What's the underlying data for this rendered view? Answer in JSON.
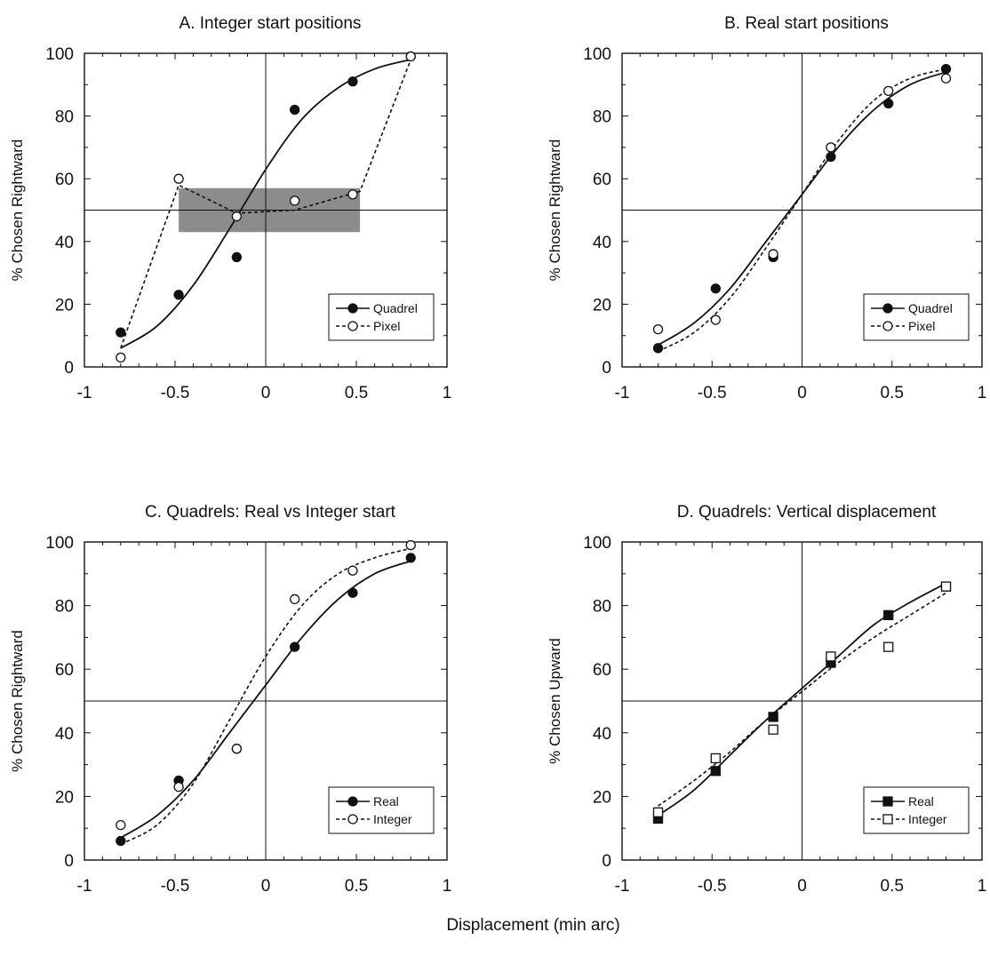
{
  "figure": {
    "xlabel": "Displacement (min arc)"
  },
  "chart_data": [
    {
      "type": "line",
      "title": "A.  Integer start positions",
      "xlabel": "",
      "ylabel": "% Chosen Rightward",
      "xlim": [
        -1,
        1
      ],
      "ylim": [
        0,
        100
      ],
      "xticks": [
        "-1",
        "-0.5",
        "0",
        "0.5",
        "1"
      ],
      "yticks": [
        "0",
        "20",
        "40",
        "60",
        "80",
        "100"
      ],
      "legend_position": "bottom-right",
      "shaded_band": {
        "x": [
          -0.48,
          0.52
        ],
        "y": [
          43,
          57
        ]
      },
      "series": [
        {
          "name": "Quadrel",
          "marker": "filled-circle",
          "line": "solid",
          "x": [
            -0.8,
            -0.48,
            -0.16,
            0.16,
            0.48,
            0.8
          ],
          "y": [
            11,
            23,
            35,
            82,
            91,
            99
          ],
          "fit": {
            "x": [
              -0.8,
              -0.6,
              -0.4,
              -0.2,
              0,
              0.2,
              0.4,
              0.6,
              0.8
            ],
            "y": [
              6,
              13,
              26,
              44,
              63,
              79,
              89,
              95,
              98
            ]
          }
        },
        {
          "name": "Pixel",
          "marker": "open-circle",
          "line": "dashed",
          "x": [
            -0.8,
            -0.48,
            -0.16,
            0.16,
            0.48,
            0.8
          ],
          "y": [
            3,
            60,
            48,
            53,
            55,
            99
          ],
          "fit": {
            "x": [
              -0.8,
              -0.48,
              -0.16,
              0.16,
              0.52,
              0.8
            ],
            "y": [
              6,
              58,
              49,
              50,
              56,
              98
            ]
          }
        }
      ]
    },
    {
      "type": "line",
      "title": "B.  Real start positions",
      "xlabel": "",
      "ylabel": "% Chosen Rightward",
      "xlim": [
        -1,
        1
      ],
      "ylim": [
        0,
        100
      ],
      "xticks": [
        "-1",
        "-0.5",
        "0",
        "0.5",
        "1"
      ],
      "yticks": [
        "0",
        "20",
        "40",
        "60",
        "80",
        "100"
      ],
      "legend_position": "bottom-right",
      "series": [
        {
          "name": "Quadrel",
          "marker": "filled-circle",
          "line": "solid",
          "x": [
            -0.8,
            -0.48,
            -0.16,
            0.16,
            0.48,
            0.8
          ],
          "y": [
            6,
            25,
            35,
            67,
            84,
            95
          ],
          "fit": {
            "x": [
              -0.8,
              -0.6,
              -0.4,
              -0.2,
              0,
              0.2,
              0.4,
              0.6,
              0.8
            ],
            "y": [
              7,
              14,
              25,
              40,
              55,
              70,
              82,
              90,
              94
            ]
          }
        },
        {
          "name": "Pixel",
          "marker": "open-circle",
          "line": "dashed",
          "x": [
            -0.8,
            -0.48,
            -0.16,
            0.16,
            0.48,
            0.8
          ],
          "y": [
            12,
            15,
            36,
            70,
            88,
            92
          ],
          "fit": {
            "x": [
              -0.8,
              -0.6,
              -0.4,
              -0.2,
              0,
              0.2,
              0.4,
              0.6,
              0.8
            ],
            "y": [
              5,
              11,
              22,
              38,
              55,
              72,
              85,
              92,
              95
            ]
          }
        }
      ]
    },
    {
      "type": "line",
      "title": "C.  Quadrels: Real vs Integer start",
      "xlabel": "",
      "ylabel": "% Chosen Rightward",
      "xlim": [
        -1,
        1
      ],
      "ylim": [
        0,
        100
      ],
      "xticks": [
        "-1",
        "-0.5",
        "0",
        "0.5",
        "1"
      ],
      "yticks": [
        "0",
        "20",
        "40",
        "60",
        "80",
        "100"
      ],
      "legend_position": "bottom-right",
      "series": [
        {
          "name": "Real",
          "marker": "filled-circle",
          "line": "solid",
          "x": [
            -0.8,
            -0.48,
            -0.16,
            0.16,
            0.48,
            0.8
          ],
          "y": [
            6,
            25,
            35,
            67,
            84,
            95
          ],
          "fit": {
            "x": [
              -0.8,
              -0.6,
              -0.4,
              -0.2,
              0,
              0.2,
              0.4,
              0.6,
              0.8
            ],
            "y": [
              7,
              14,
              25,
              40,
              55,
              70,
              82,
              90,
              94
            ]
          }
        },
        {
          "name": "Integer",
          "marker": "open-circle",
          "line": "dashed",
          "x": [
            -0.8,
            -0.48,
            -0.16,
            0.16,
            0.48,
            0.8
          ],
          "y": [
            11,
            23,
            35,
            82,
            91,
            99
          ],
          "fit": {
            "x": [
              -0.8,
              -0.6,
              -0.4,
              -0.2,
              0,
              0.2,
              0.4,
              0.6,
              0.8
            ],
            "y": [
              5,
              11,
              24,
              44,
              64,
              80,
              90,
              95,
              98
            ]
          }
        }
      ]
    },
    {
      "type": "line",
      "title": "D.  Quadrels: Vertical displacement",
      "xlabel": "",
      "ylabel": "% Chosen Upward",
      "xlim": [
        -1,
        1
      ],
      "ylim": [
        0,
        100
      ],
      "xticks": [
        "-1",
        "-0.5",
        "0",
        "0.5",
        "1"
      ],
      "yticks": [
        "0",
        "20",
        "40",
        "60",
        "80",
        "100"
      ],
      "legend_position": "bottom-right",
      "series": [
        {
          "name": "Real",
          "marker": "filled-square",
          "line": "solid",
          "x": [
            -0.8,
            -0.48,
            -0.16,
            0.16,
            0.48,
            0.8
          ],
          "y": [
            13,
            28,
            45,
            62,
            77,
            86
          ],
          "fit": {
            "x": [
              -0.8,
              -0.6,
              -0.4,
              -0.2,
              0,
              0.2,
              0.4,
              0.6,
              0.8
            ],
            "y": [
              14,
              22,
              33,
              44,
              54,
              64,
              74,
              81,
              87
            ]
          }
        },
        {
          "name": "Integer",
          "marker": "open-square",
          "line": "dashed",
          "x": [
            -0.8,
            -0.48,
            -0.16,
            0.16,
            0.48,
            0.8
          ],
          "y": [
            15,
            32,
            41,
            64,
            67,
            86
          ],
          "fit": {
            "x": [
              -0.8,
              -0.6,
              -0.4,
              -0.2,
              0,
              0.2,
              0.4,
              0.6,
              0.8
            ],
            "y": [
              17,
              25,
              34,
              44,
              53,
              62,
              70,
              77,
              84
            ]
          }
        }
      ]
    }
  ]
}
